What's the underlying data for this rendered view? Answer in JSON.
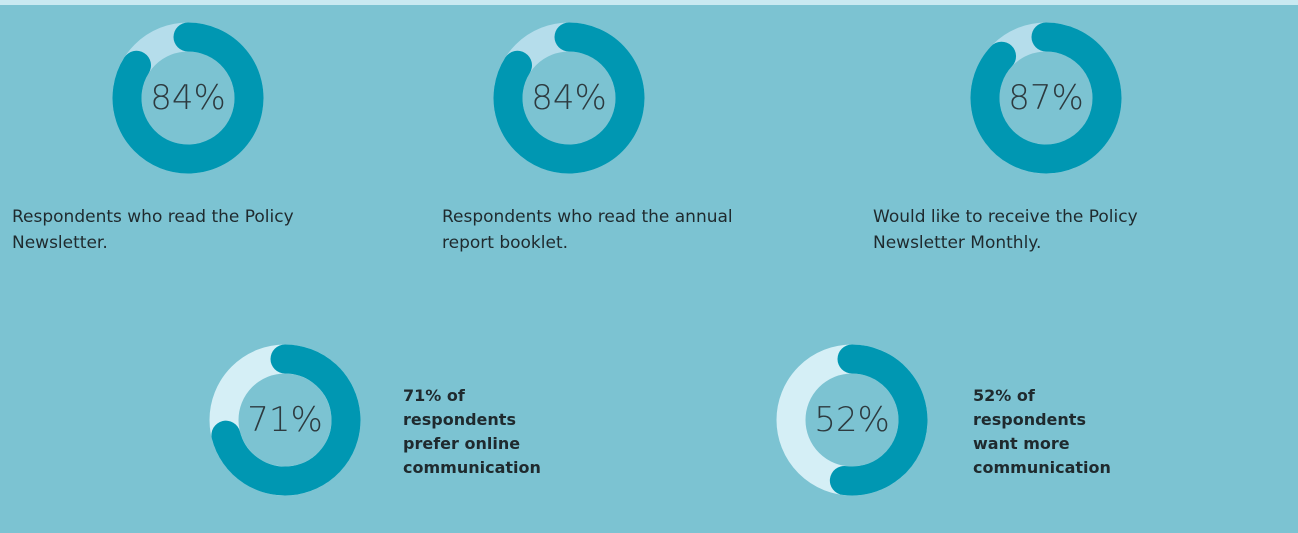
{
  "chart_data": [
    {
      "type": "donut",
      "values": [
        84
      ],
      "value_labels": [
        "84%"
      ],
      "color": "#0097b2",
      "track_color": "#b5ddeb",
      "caption": "Respondents who read the Policy Newsletter."
    },
    {
      "type": "donut",
      "values": [
        84
      ],
      "value_labels": [
        "84%"
      ],
      "color": "#0097b2",
      "track_color": "#b5ddeb",
      "caption": "Respondents who read the annual report booklet."
    },
    {
      "type": "donut",
      "values": [
        87
      ],
      "value_labels": [
        "87%"
      ],
      "color": "#0097b2",
      "track_color": "#b5ddeb",
      "caption": "Would like to receive the Policy Newsletter Monthly."
    },
    {
      "type": "donut",
      "values": [
        71
      ],
      "value_labels": [
        "71%"
      ],
      "color": "#0097b2",
      "track_color": "#d5eff6",
      "caption": "71% of respondents prefer online communication"
    },
    {
      "type": "donut",
      "values": [
        52
      ],
      "value_labels": [
        "52%"
      ],
      "color": "#0097b2",
      "track_color": "#d5eff6",
      "caption": "52% of respondents want more communication"
    }
  ]
}
